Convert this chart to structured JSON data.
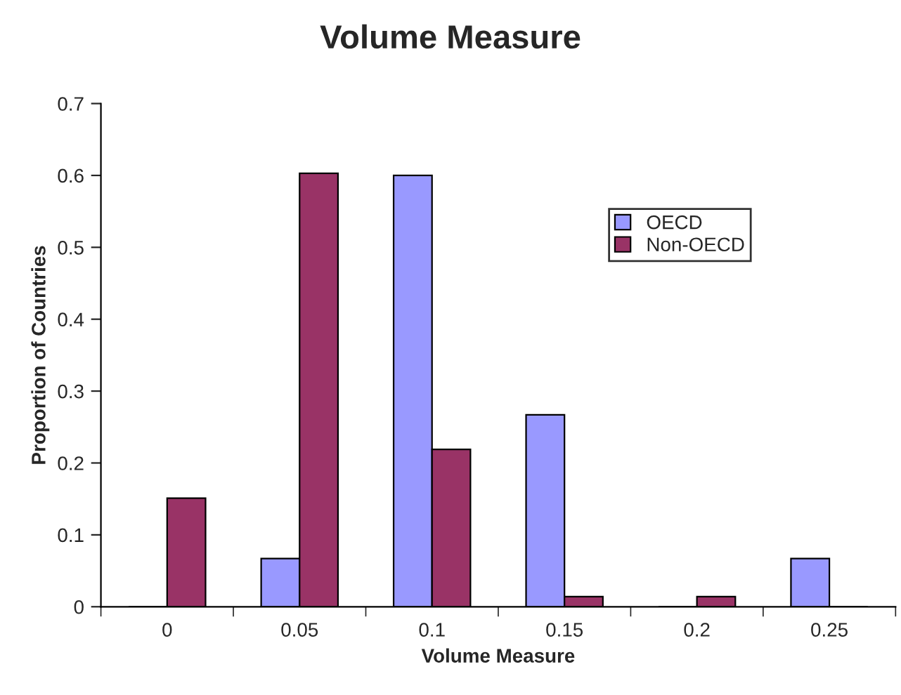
{
  "chart_data": {
    "type": "bar",
    "title": "Volume Measure",
    "xlabel": "Volume Measure",
    "ylabel": "Proportion of Countries",
    "categories": [
      "0",
      "0.05",
      "0.1",
      "0.15",
      "0.2",
      "0.25"
    ],
    "series": [
      {
        "name": "OECD",
        "color": "#9999ff",
        "values": [
          0,
          0.067,
          0.6,
          0.267,
          0,
          0.067
        ]
      },
      {
        "name": "Non-OECD",
        "color": "#993366",
        "values": [
          0.151,
          0.603,
          0.219,
          0.014,
          0.014,
          0
        ]
      }
    ],
    "ylim": [
      0,
      0.7
    ],
    "yticks": [
      0,
      0.1,
      0.2,
      0.3,
      0.4,
      0.5,
      0.6,
      0.7
    ],
    "grid": false,
    "legend": "top right"
  }
}
